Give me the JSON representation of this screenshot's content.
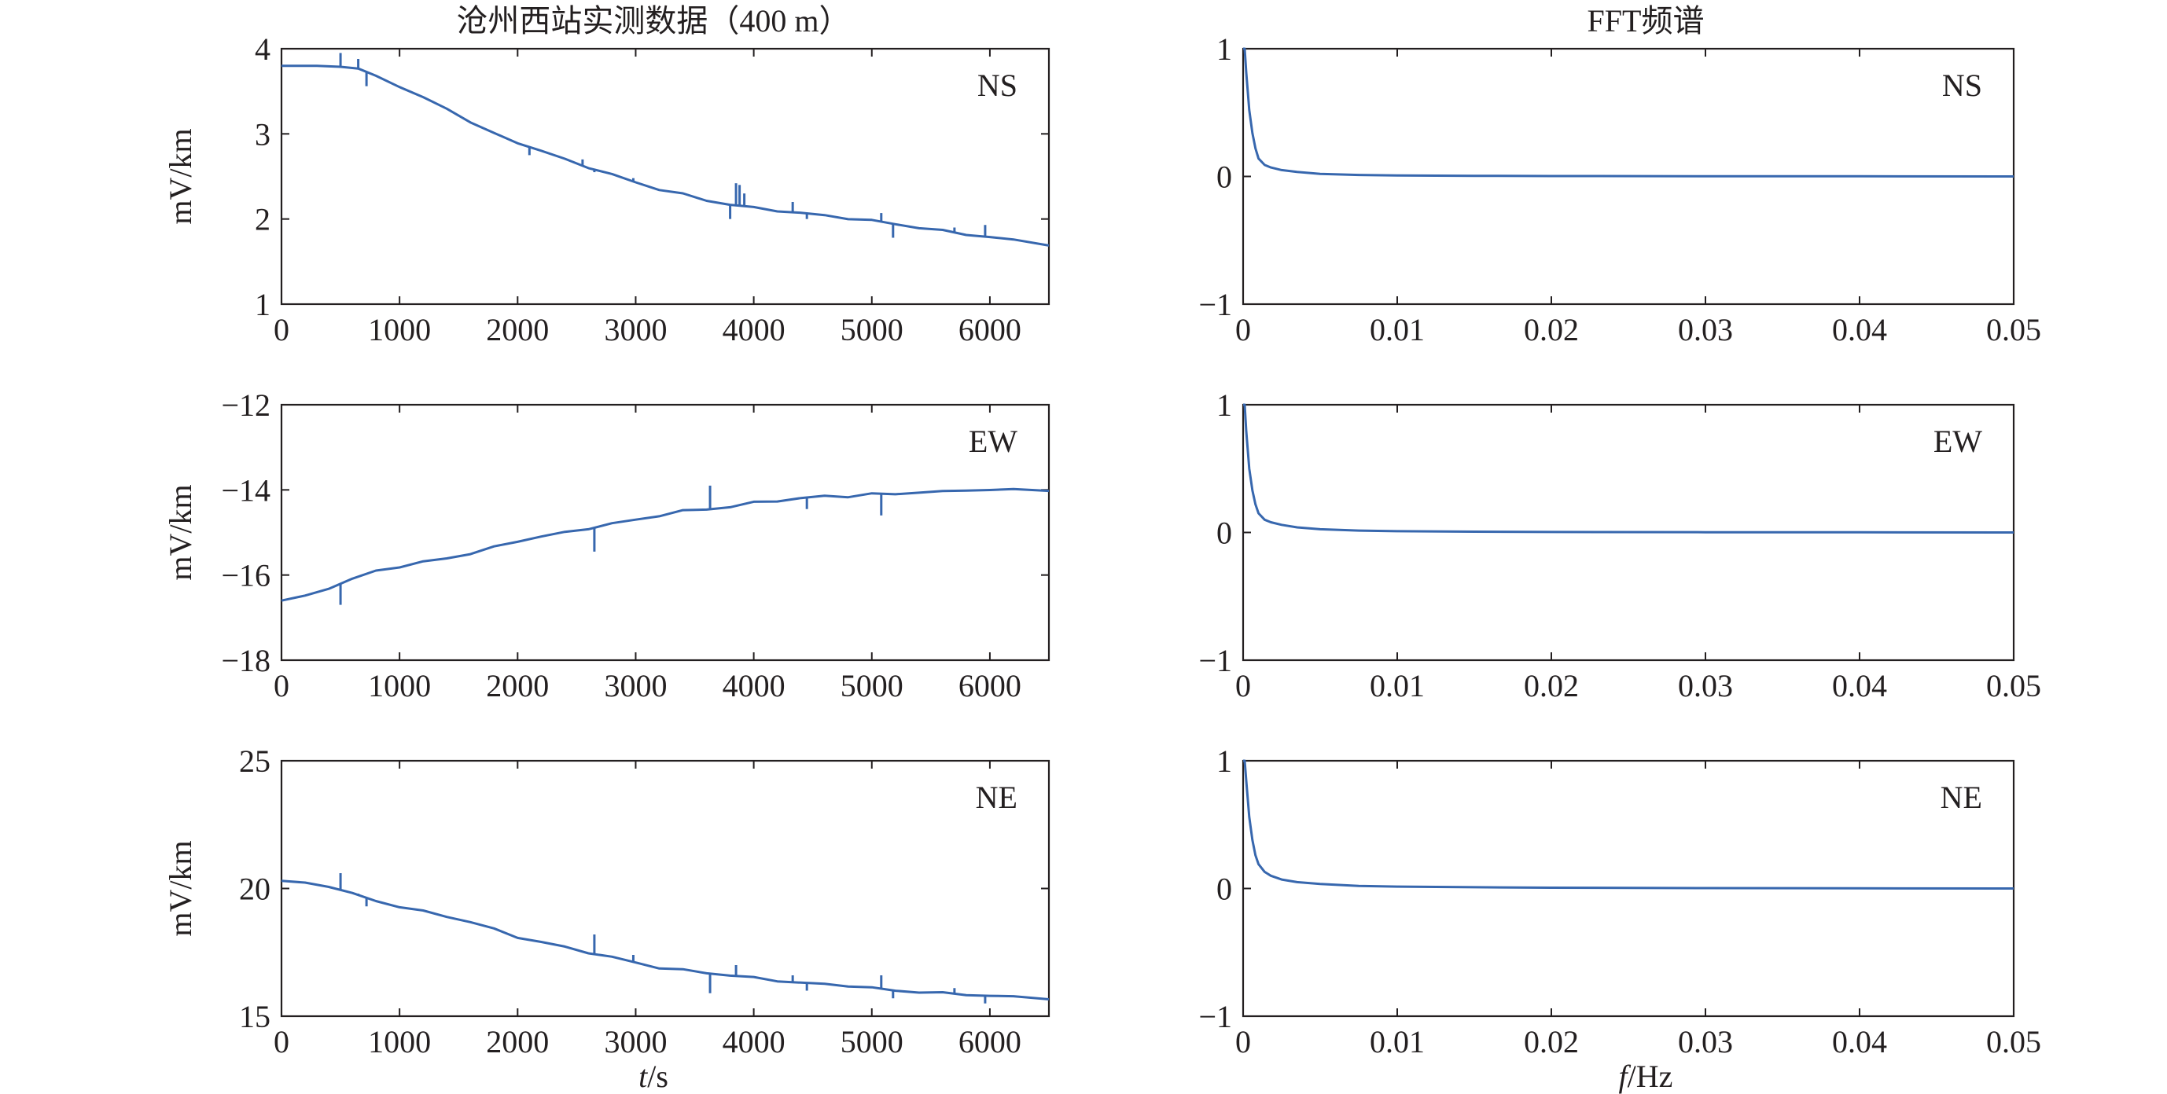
{
  "figure": {
    "left_title": "沧州西站实测数据（400 m）",
    "right_title": "FFT频谱",
    "ylabel": "mV/km",
    "time_xlabel": {
      "var": "t",
      "unit": "/s"
    },
    "freq_xlabel": {
      "var": "f",
      "unit": "/Hz"
    }
  },
  "colors": {
    "line": "#3767ae",
    "axis": "#231f20",
    "background": "#ffffff"
  },
  "chart_data": [
    {
      "type": "line",
      "component": "NS",
      "domain": "time",
      "xlim": [
        0,
        6500
      ],
      "ylim": [
        1,
        4
      ],
      "xticks": [
        0,
        1000,
        2000,
        3000,
        4000,
        5000,
        6000
      ],
      "yticks": [
        1,
        2,
        3,
        4
      ],
      "ytick_labels": [
        "1",
        "2",
        "3",
        "4"
      ],
      "series": [
        {
          "x": [
            0,
            300,
            500,
            650,
            800,
            1000,
            1200,
            1400,
            1600,
            1800,
            2000,
            2200,
            2400,
            2600,
            2800,
            3000,
            3200,
            3400,
            3600,
            3800,
            4000,
            4200,
            4400,
            4600,
            4800,
            5000,
            5200,
            5400,
            5600,
            5800,
            6000,
            6200,
            6500
          ],
          "y": [
            3.8,
            3.79,
            3.8,
            3.76,
            3.68,
            3.56,
            3.42,
            3.3,
            3.14,
            3.0,
            2.9,
            2.8,
            2.7,
            2.61,
            2.52,
            2.43,
            2.35,
            2.29,
            2.22,
            2.17,
            2.13,
            2.1,
            2.07,
            2.04,
            2.01,
            1.98,
            1.94,
            1.9,
            1.86,
            1.82,
            1.79,
            1.75,
            1.7
          ],
          "spikes": [
            [
              500,
              3.95
            ],
            [
              650,
              3.88
            ],
            [
              720,
              3.56
            ],
            [
              2100,
              2.75
            ],
            [
              2550,
              2.7
            ],
            [
              2650,
              2.55
            ],
            [
              2980,
              2.48
            ],
            [
              3630,
              2.2
            ],
            [
              3800,
              2.0
            ],
            [
              3850,
              2.42
            ],
            [
              3880,
              2.4
            ],
            [
              3920,
              2.3
            ],
            [
              4330,
              2.2
            ],
            [
              4450,
              2.0
            ],
            [
              5080,
              2.07
            ],
            [
              5180,
              1.78
            ],
            [
              5700,
              1.9
            ],
            [
              5960,
              1.93
            ]
          ]
        }
      ]
    },
    {
      "type": "line",
      "component": "NS",
      "domain": "frequency",
      "xlim": [
        0,
        0.05
      ],
      "ylim": [
        -1,
        1
      ],
      "xticks": [
        0,
        0.01,
        0.02,
        0.03,
        0.04,
        0.05
      ],
      "yticks": [
        -1,
        0,
        1
      ],
      "ytick_labels": [
        "−1",
        "0",
        "1"
      ],
      "series": [
        {
          "x": [
            0.0,
            0.0001,
            0.0002,
            0.0004,
            0.0006,
            0.0008,
            0.001,
            0.0014,
            0.0018,
            0.0025,
            0.0035,
            0.005,
            0.0075,
            0.01,
            0.015,
            0.02,
            0.03,
            0.04,
            0.05
          ],
          "y": [
            1.0,
            1.0,
            0.82,
            0.52,
            0.34,
            0.22,
            0.14,
            0.09,
            0.07,
            0.05,
            0.035,
            0.02,
            0.012,
            0.008,
            0.005,
            0.003,
            0.002,
            0.001,
            0.0
          ],
          "spikes": []
        }
      ]
    },
    {
      "type": "line",
      "component": "EW",
      "domain": "time",
      "xlim": [
        0,
        6500
      ],
      "ylim": [
        -18,
        -12
      ],
      "xticks": [
        0,
        1000,
        2000,
        3000,
        4000,
        5000,
        6000
      ],
      "yticks": [
        -18,
        -16,
        -14,
        -12
      ],
      "ytick_labels": [
        "−18",
        "−16",
        "−14",
        "−12"
      ],
      "series": [
        {
          "x": [
            0,
            200,
            400,
            600,
            800,
            1000,
            1200,
            1400,
            1600,
            1800,
            2000,
            2200,
            2400,
            2600,
            2800,
            3000,
            3200,
            3400,
            3600,
            3800,
            4000,
            4200,
            4400,
            4600,
            4800,
            5000,
            5200,
            5400,
            5600,
            5800,
            6000,
            6200,
            6500
          ],
          "y": [
            -16.6,
            -16.5,
            -16.3,
            -16.1,
            -15.9,
            -15.8,
            -15.7,
            -15.6,
            -15.5,
            -15.35,
            -15.2,
            -15.1,
            -15.0,
            -14.9,
            -14.8,
            -14.7,
            -14.6,
            -14.5,
            -14.45,
            -14.4,
            -14.3,
            -14.25,
            -14.2,
            -14.15,
            -14.15,
            -14.1,
            -14.1,
            -14.05,
            -14.05,
            -14.0,
            -14.0,
            -14.0,
            -14.0
          ],
          "spikes": [
            [
              500,
              -16.7
            ],
            [
              2650,
              -15.45
            ],
            [
              3630,
              -13.9
            ],
            [
              4450,
              -14.45
            ],
            [
              5080,
              -14.6
            ]
          ]
        }
      ]
    },
    {
      "type": "line",
      "component": "EW",
      "domain": "frequency",
      "xlim": [
        0,
        0.05
      ],
      "ylim": [
        -1,
        1
      ],
      "xticks": [
        0,
        0.01,
        0.02,
        0.03,
        0.04,
        0.05
      ],
      "yticks": [
        -1,
        0,
        1
      ],
      "ytick_labels": [
        "−1",
        "0",
        "1"
      ],
      "series": [
        {
          "x": [
            0.0,
            0.0001,
            0.0002,
            0.0004,
            0.0006,
            0.0008,
            0.001,
            0.0014,
            0.0018,
            0.0025,
            0.0035,
            0.005,
            0.0075,
            0.01,
            0.015,
            0.02,
            0.03,
            0.04,
            0.05
          ],
          "y": [
            1.0,
            1.0,
            0.8,
            0.5,
            0.33,
            0.22,
            0.15,
            0.1,
            0.08,
            0.06,
            0.04,
            0.025,
            0.015,
            0.01,
            0.006,
            0.004,
            0.002,
            0.001,
            0.0
          ],
          "spikes": []
        }
      ]
    },
    {
      "type": "line",
      "component": "NE",
      "domain": "time",
      "xlim": [
        0,
        6500
      ],
      "ylim": [
        15,
        25
      ],
      "xticks": [
        0,
        1000,
        2000,
        3000,
        4000,
        5000,
        6000
      ],
      "yticks": [
        15,
        20,
        25
      ],
      "ytick_labels": [
        "15",
        "20",
        "25"
      ],
      "series": [
        {
          "x": [
            0,
            200,
            400,
            600,
            800,
            1000,
            1200,
            1400,
            1600,
            1800,
            2000,
            2200,
            2400,
            2600,
            2800,
            3000,
            3200,
            3400,
            3600,
            3800,
            4000,
            4200,
            4400,
            4600,
            4800,
            5000,
            5200,
            5400,
            5600,
            5800,
            6000,
            6200,
            6500
          ],
          "y": [
            20.3,
            20.2,
            20.1,
            19.8,
            19.5,
            19.3,
            19.1,
            18.9,
            18.7,
            18.4,
            18.1,
            17.9,
            17.7,
            17.5,
            17.3,
            17.1,
            16.9,
            16.8,
            16.7,
            16.6,
            16.5,
            16.4,
            16.3,
            16.25,
            16.2,
            16.1,
            16.0,
            15.95,
            15.9,
            15.85,
            15.8,
            15.75,
            15.7
          ],
          "spikes": [
            [
              500,
              20.6
            ],
            [
              650,
              19.8
            ],
            [
              720,
              19.3
            ],
            [
              2650,
              18.2
            ],
            [
              2980,
              17.4
            ],
            [
              3630,
              15.9
            ],
            [
              3850,
              17.0
            ],
            [
              4330,
              16.6
            ],
            [
              4450,
              16.0
            ],
            [
              5080,
              16.6
            ],
            [
              5180,
              15.7
            ],
            [
              5700,
              16.1
            ],
            [
              5960,
              15.5
            ]
          ]
        }
      ]
    },
    {
      "type": "line",
      "component": "NE",
      "domain": "frequency",
      "xlim": [
        0,
        0.05
      ],
      "ylim": [
        -1,
        1
      ],
      "xticks": [
        0,
        0.01,
        0.02,
        0.03,
        0.04,
        0.05
      ],
      "yticks": [
        -1,
        0,
        1
      ],
      "ytick_labels": [
        "−1",
        "0",
        "1"
      ],
      "series": [
        {
          "x": [
            0.0,
            0.0001,
            0.0002,
            0.0004,
            0.0006,
            0.0008,
            0.001,
            0.0014,
            0.0018,
            0.0025,
            0.0035,
            0.005,
            0.0075,
            0.01,
            0.015,
            0.02,
            0.03,
            0.04,
            0.05
          ],
          "y": [
            1.0,
            1.0,
            0.85,
            0.56,
            0.38,
            0.26,
            0.19,
            0.13,
            0.1,
            0.07,
            0.05,
            0.035,
            0.02,
            0.015,
            0.01,
            0.006,
            0.003,
            0.001,
            0.0
          ],
          "spikes": []
        }
      ]
    }
  ]
}
